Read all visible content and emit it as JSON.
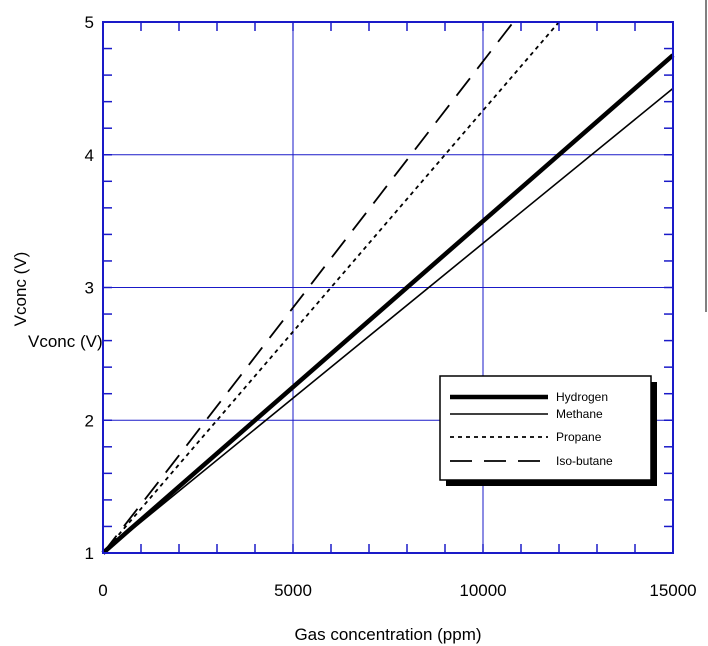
{
  "chart_data": {
    "type": "line",
    "xlabel": "Gas concentration (ppm)",
    "ylabel": "Vconc (V)",
    "ylabel_overlay": "Vconc (V)",
    "xlim": [
      0,
      15000
    ],
    "ylim": [
      1,
      5
    ],
    "x_ticks": [
      0,
      5000,
      10000,
      15000
    ],
    "y_ticks": [
      1,
      2,
      3,
      4,
      5
    ],
    "x_tick_labels": [
      "0",
      "5000",
      "10000",
      "15000"
    ],
    "y_tick_labels": [
      "1",
      "2",
      "3",
      "4",
      "5"
    ],
    "grid": true,
    "legend_position": "bottom-right",
    "series": [
      {
        "name": "Hydrogen",
        "style": "thick-solid",
        "x": [
          0,
          15000
        ],
        "y": [
          1,
          4.75
        ]
      },
      {
        "name": "Methane",
        "style": "solid",
        "x": [
          0,
          15000
        ],
        "y": [
          1,
          4.5
        ]
      },
      {
        "name": "Propane",
        "style": "dotted",
        "x": [
          0,
          1500,
          12000
        ],
        "y": [
          1,
          1.5,
          5
        ]
      },
      {
        "name": "Iso-butane",
        "style": "dashed",
        "x": [
          0,
          1500,
          10800
        ],
        "y": [
          1,
          1.55,
          5
        ]
      }
    ]
  },
  "colors": {
    "frame": "#1a1ac8",
    "grid": "#1a1ac8",
    "series": "#000000",
    "legend_shadow": "#000000"
  }
}
